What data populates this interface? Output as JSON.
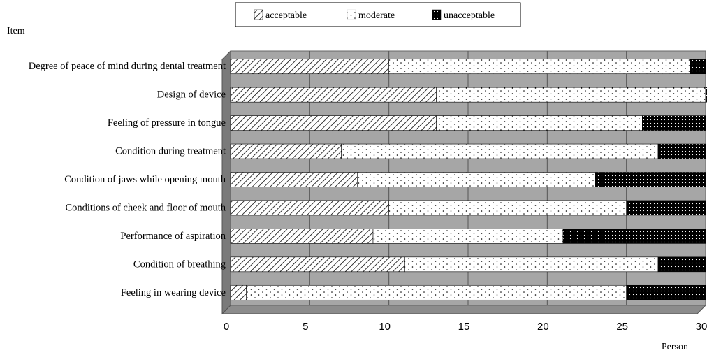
{
  "chart_data": {
    "type": "bar",
    "orientation": "horizontal",
    "stacked": true,
    "categories": [
      "Degree of peace of mind during dental treatment",
      "Design of device",
      "Feeling of pressure in tongue",
      "Condition during treatment",
      "Condition of jaws while opening mouth",
      "Conditions of cheek and floor of mouth",
      "Performance of aspiration",
      "Condition of breathing",
      "Feeling in wearing device"
    ],
    "series": [
      {
        "name": "acceptable",
        "values": [
          10,
          13,
          13,
          7,
          8,
          10,
          9,
          11,
          1
        ]
      },
      {
        "name": "moderate",
        "values": [
          19,
          17,
          13,
          20,
          15,
          15,
          12,
          16,
          24
        ]
      },
      {
        "name": "unacceptable",
        "values": [
          1,
          0.2,
          4,
          3,
          7,
          5,
          9,
          3,
          5
        ]
      }
    ],
    "xlim": [
      0,
      30
    ],
    "xticks": [
      "0",
      "5",
      "10",
      "15",
      "20",
      "25",
      "30"
    ],
    "xlabel": "Person",
    "ylabel": "Item",
    "grid": "vertical gridlines at every tick",
    "legend_position": "top-center",
    "colors": {
      "plot_background": "#a6a6a6",
      "plot_side": "#7a7a7a",
      "plot_floor": "#8c8c8c",
      "bar_fill": "#ffffff",
      "bar_pattern_ink": "#000000"
    },
    "patterns": {
      "acceptable": "diagonal-hatch",
      "moderate": "sparse-dots",
      "unacceptable": "dense-dots-on-black"
    }
  }
}
